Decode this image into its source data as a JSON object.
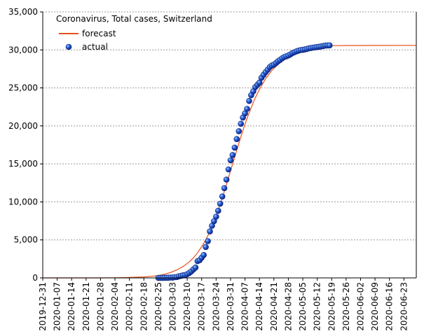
{
  "chart_data": {
    "type": "line",
    "title": "Coronavirus, Total cases, Switzerland",
    "xlabel": "",
    "ylabel": "",
    "x_axis": {
      "type": "date",
      "range": [
        "2019-12-31",
        "2020-06-29"
      ],
      "tick_labels": [
        "2019-12-31",
        "2020-01-07",
        "2020-01-14",
        "2020-01-21",
        "2020-01-28",
        "2020-02-04",
        "2020-02-11",
        "2020-02-18",
        "2020-02-25",
        "2020-03-03",
        "2020-03-10",
        "2020-03-17",
        "2020-03-24",
        "2020-03-31",
        "2020-04-07",
        "2020-04-14",
        "2020-04-21",
        "2020-04-28",
        "2020-05-05",
        "2020-05-12",
        "2020-05-19",
        "2020-05-26",
        "2020-06-02",
        "2020-06-09",
        "2020-06-16",
        "2020-06-23"
      ]
    },
    "y_axis": {
      "range": [
        0,
        35000
      ],
      "tick_values": [
        0,
        5000,
        10000,
        15000,
        20000,
        25000,
        30000,
        35000
      ],
      "tick_labels": [
        "0",
        "5,000",
        "10,000",
        "15,000",
        "20,000",
        "25,000",
        "30,000",
        "35,000"
      ]
    },
    "grid": {
      "horizontal": true,
      "vertical": false,
      "style": "dotted"
    },
    "legend": {
      "placement": "top-left",
      "entries": [
        "forecast",
        "actual"
      ]
    },
    "colors": {
      "forecast": "#e8501a",
      "actual": "#1a3fb8",
      "actual_highlight": "#7fb6ff",
      "grid": "#999999",
      "axis": "#000000"
    },
    "series": [
      {
        "name": "forecast",
        "style": "line",
        "x": [
          "2019-12-31",
          "2020-01-14",
          "2020-01-28",
          "2020-02-04",
          "2020-02-11",
          "2020-02-18",
          "2020-02-22",
          "2020-02-25",
          "2020-02-28",
          "2020-03-02",
          "2020-03-05",
          "2020-03-08",
          "2020-03-11",
          "2020-03-13",
          "2020-03-15",
          "2020-03-17",
          "2020-03-19",
          "2020-03-21",
          "2020-03-23",
          "2020-03-25",
          "2020-03-27",
          "2020-03-29",
          "2020-03-31",
          "2020-04-02",
          "2020-04-04",
          "2020-04-06",
          "2020-04-08",
          "2020-04-10",
          "2020-04-12",
          "2020-04-14",
          "2020-04-17",
          "2020-04-20",
          "2020-04-23",
          "2020-04-26",
          "2020-04-29",
          "2020-05-03",
          "2020-05-07",
          "2020-05-12",
          "2020-05-19",
          "2020-05-26",
          "2020-06-09",
          "2020-06-29"
        ],
        "y": [
          0,
          0,
          2,
          20,
          60,
          130,
          210,
          320,
          480,
          720,
          1050,
          1500,
          2100,
          2650,
          3300,
          4100,
          5000,
          6100,
          7400,
          8900,
          10500,
          12300,
          14100,
          15900,
          17700,
          19400,
          21000,
          22400,
          23700,
          24800,
          26200,
          27300,
          28100,
          28700,
          29200,
          29700,
          30000,
          30300,
          30550,
          30580,
          30590,
          30600
        ]
      },
      {
        "name": "actual",
        "style": "points",
        "x": [
          "2020-02-25",
          "2020-02-26",
          "2020-02-27",
          "2020-02-28",
          "2020-02-29",
          "2020-03-01",
          "2020-03-02",
          "2020-03-03",
          "2020-03-04",
          "2020-03-05",
          "2020-03-06",
          "2020-03-07",
          "2020-03-08",
          "2020-03-09",
          "2020-03-10",
          "2020-03-11",
          "2020-03-12",
          "2020-03-13",
          "2020-03-14",
          "2020-03-15",
          "2020-03-16",
          "2020-03-17",
          "2020-03-18",
          "2020-03-19",
          "2020-03-20",
          "2020-03-21",
          "2020-03-22",
          "2020-03-23",
          "2020-03-24",
          "2020-03-25",
          "2020-03-26",
          "2020-03-27",
          "2020-03-28",
          "2020-03-29",
          "2020-03-30",
          "2020-03-31",
          "2020-04-01",
          "2020-04-02",
          "2020-04-03",
          "2020-04-04",
          "2020-04-05",
          "2020-04-06",
          "2020-04-07",
          "2020-04-08",
          "2020-04-09",
          "2020-04-10",
          "2020-04-11",
          "2020-04-12",
          "2020-04-13",
          "2020-04-14",
          "2020-04-15",
          "2020-04-16",
          "2020-04-17",
          "2020-04-18",
          "2020-04-19",
          "2020-04-20",
          "2020-04-21",
          "2020-04-22",
          "2020-04-23",
          "2020-04-24",
          "2020-04-25",
          "2020-04-26",
          "2020-04-27",
          "2020-04-28",
          "2020-04-29",
          "2020-04-30",
          "2020-05-01",
          "2020-05-02",
          "2020-05-03",
          "2020-05-04",
          "2020-05-05",
          "2020-05-06",
          "2020-05-07",
          "2020-05-08",
          "2020-05-09",
          "2020-05-10",
          "2020-05-11",
          "2020-05-12",
          "2020-05-13",
          "2020-05-14",
          "2020-05-15",
          "2020-05-16",
          "2020-05-17",
          "2020-05-18"
        ],
        "y": [
          1,
          1,
          8,
          15,
          18,
          24,
          42,
          56,
          90,
          114,
          214,
          268,
          337,
          374,
          491,
          652,
          858,
          1125,
          1359,
          2200,
          2330,
          2650,
          3010,
          4075,
          4840,
          6113,
          6863,
          7474,
          8060,
          8836,
          9765,
          10714,
          11811,
          12928,
          14274,
          15475,
          16176,
          17139,
          18267,
          19303,
          20278,
          21100,
          21652,
          22242,
          23280,
          24051,
          24551,
          25107,
          25415,
          25688,
          26336,
          26732,
          27078,
          27404,
          27740,
          27944,
          28063,
          28268,
          28496,
          28677,
          28894,
          29061,
          29164,
          29264,
          29407,
          29586,
          29705,
          29817,
          29905,
          29981,
          30009,
          30060,
          30126,
          30207,
          30251,
          30305,
          30344,
          30380,
          30413,
          30463,
          30514,
          30572,
          30587,
          30597
        ]
      }
    ]
  }
}
